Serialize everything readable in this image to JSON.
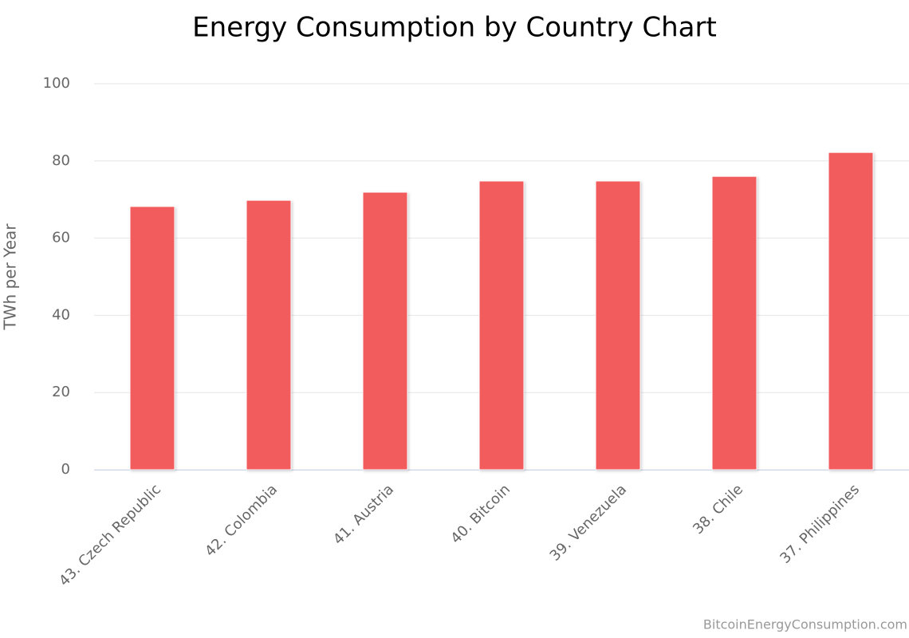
{
  "chart_data": {
    "type": "bar",
    "title": "Energy Consumption by Country Chart",
    "y_label": "TWh per Year",
    "credit": "BitcoinEnergyConsumption.com",
    "categories": [
      "43. Czech Republic",
      "42. Colombia",
      "41. Austria",
      "40. Bitcoin",
      "39. Venezuela",
      "38. Chile",
      "37. Philippines"
    ],
    "values": [
      68.2,
      69.8,
      71.9,
      74.8,
      74.8,
      76.0,
      82.2
    ],
    "color": "#f25b5b",
    "ylim": [
      0,
      100
    ],
    "yticks": [
      0,
      20,
      40,
      60,
      80,
      100
    ],
    "grid": true
  }
}
